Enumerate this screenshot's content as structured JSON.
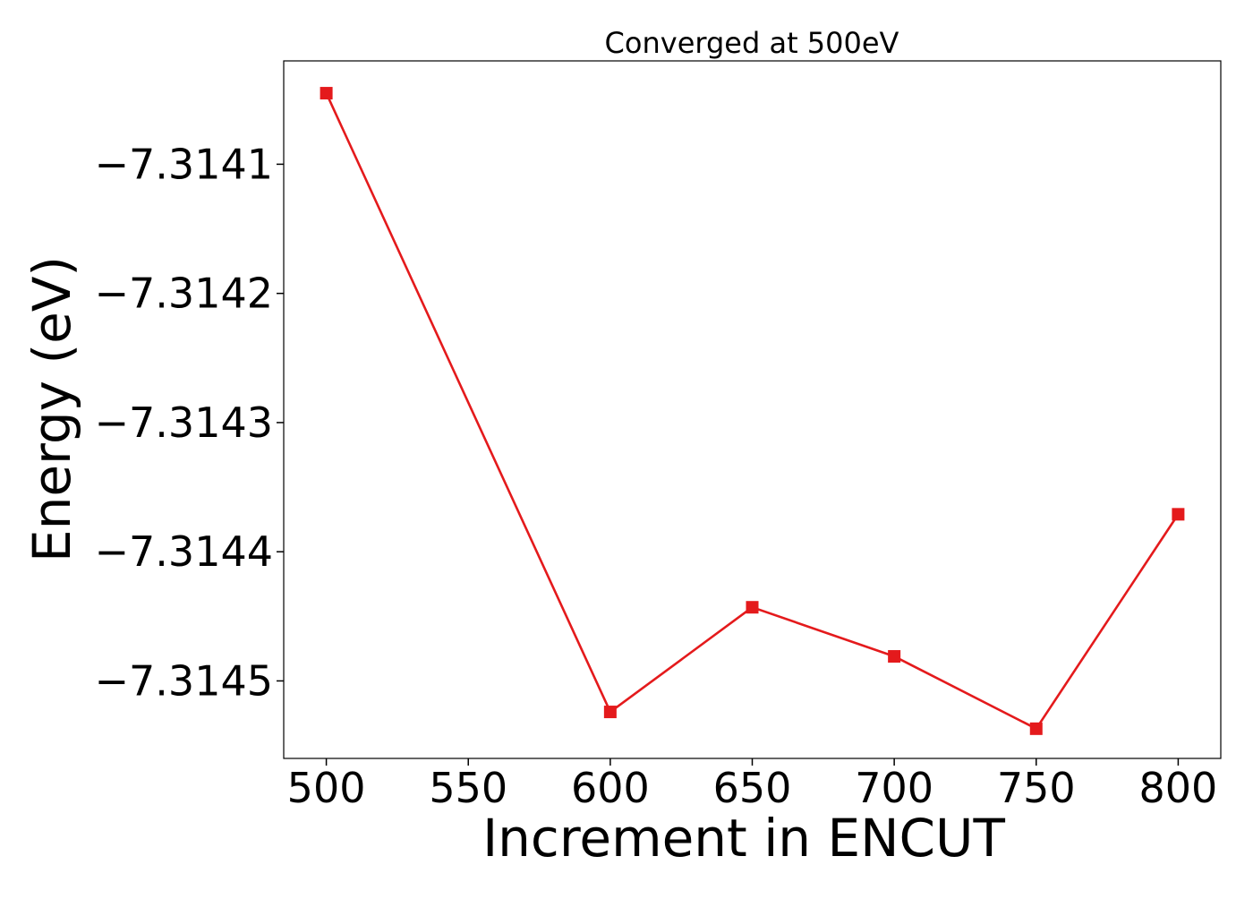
{
  "chart_data": {
    "type": "line",
    "title": "Converged at 500eV",
    "xlabel": "Increment in ENCUT",
    "ylabel": "Energy (eV)",
    "x": [
      500,
      600,
      650,
      700,
      750,
      800
    ],
    "series": [
      {
        "values": [
          -7.314045,
          -7.314524,
          -7.314443,
          -7.314481,
          -7.314537,
          -7.314371
        ],
        "color": "#e41a1c",
        "marker": "square"
      }
    ],
    "xticks": [
      500,
      550,
      600,
      650,
      700,
      750,
      800
    ],
    "xtick_labels": [
      "500",
      "550",
      "600",
      "650",
      "700",
      "750",
      "800"
    ],
    "yticks": [
      -7.3141,
      -7.3142,
      -7.3143,
      -7.3144,
      -7.3145
    ],
    "ytick_labels": [
      "−7.3141",
      "−7.3142",
      "−7.3143",
      "−7.3144",
      "−7.3145"
    ],
    "xlim": [
      485,
      815
    ],
    "ylim": [
      -7.31456,
      -7.31402
    ],
    "grid": false,
    "legend": "none"
  }
}
